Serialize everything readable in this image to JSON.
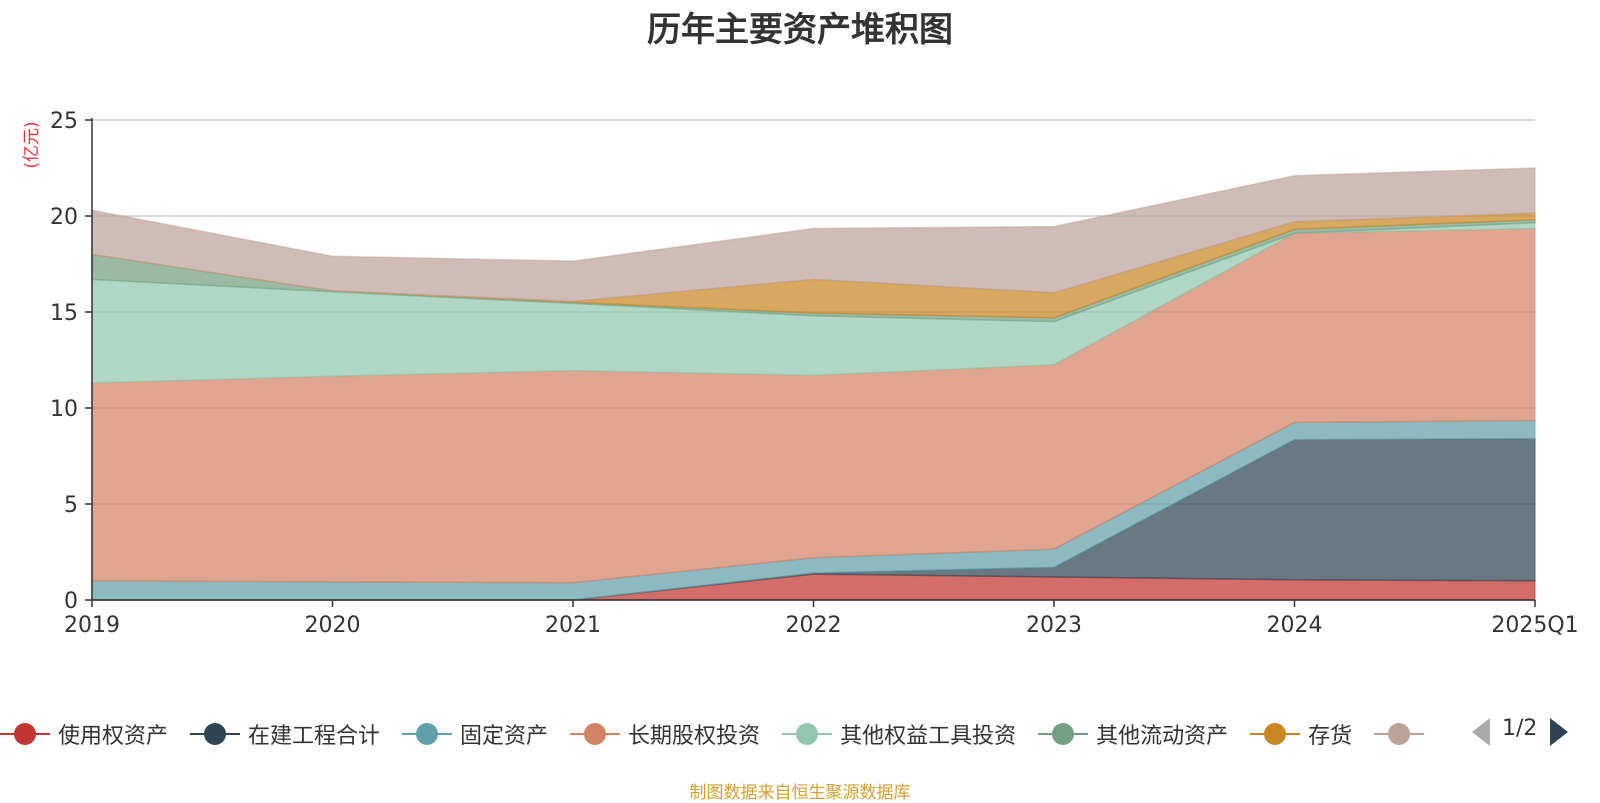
{
  "chart_data": {
    "type": "area",
    "stacked": true,
    "title": "历年主要资产堆积图",
    "unit": "(亿元)",
    "categories": [
      "2019",
      "2020",
      "2021",
      "2022",
      "2023",
      "2024",
      "2025Q1"
    ],
    "y_ticks": [
      "0",
      "5",
      "10",
      "15",
      "20",
      "25"
    ],
    "ylim": [
      0,
      25
    ],
    "grid": true,
    "legend_position": "bottom",
    "series": [
      {
        "name": "使用权资产",
        "color": "#c23531",
        "values": [
          0,
          0,
          0,
          1.35,
          1.2,
          1.05,
          1.0
        ]
      },
      {
        "name": "在建工程合计",
        "color": "#2f4554",
        "values": [
          0,
          0,
          0,
          0.05,
          0.5,
          7.3,
          7.4
        ]
      },
      {
        "name": "固定资产",
        "color": "#61a0a8",
        "values": [
          1.0,
          0.95,
          0.9,
          0.8,
          0.95,
          0.9,
          0.95
        ]
      },
      {
        "name": "长期股权投资",
        "color": "#d48265",
        "values": [
          10.3,
          10.7,
          11.05,
          9.5,
          9.6,
          9.85,
          10.0
        ]
      },
      {
        "name": "其他权益工具投资",
        "color": "#91c7ae",
        "values": [
          5.4,
          4.4,
          3.5,
          3.1,
          2.25,
          0.0,
          0.3
        ]
      },
      {
        "name": "其他流动资产",
        "color": "#749f83",
        "values": [
          1.3,
          0.05,
          0.05,
          0.15,
          0.2,
          0.2,
          0.15
        ]
      },
      {
        "name": "存货",
        "color": "#ca8622",
        "values": [
          0.0,
          0.0,
          0.05,
          1.75,
          1.3,
          0.4,
          0.35
        ]
      },
      {
        "name": "",
        "color": "#bda29a",
        "values": [
          2.3,
          1.8,
          2.1,
          2.65,
          3.45,
          2.4,
          2.35
        ]
      }
    ]
  },
  "legend": {
    "page_indicator": "1/2",
    "prev_icon": "triangle-left-icon",
    "next_icon": "triangle-right-icon"
  },
  "footer": {
    "source": "制图数据来自恒生聚源数据库"
  }
}
